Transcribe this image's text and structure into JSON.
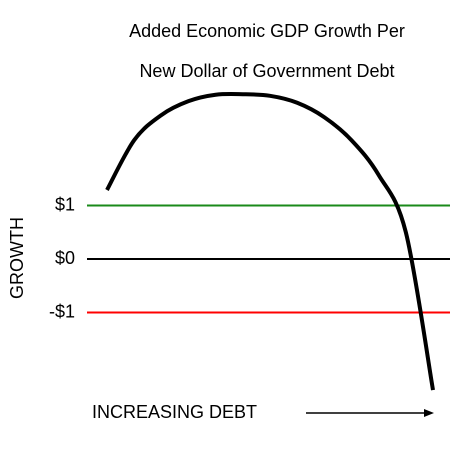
{
  "chart_data": {
    "type": "line",
    "title": "Added Economic GDP Growth Per",
    "subtitle": "New Dollar of Government Debt",
    "y_label": "GROWTH",
    "x_label": "INCREASING DEBT",
    "categories": [
      null,
      null,
      null,
      null,
      null,
      null,
      null,
      null,
      null,
      null,
      null,
      null,
      null
    ],
    "values": [
      1.29,
      2.22,
      2.69,
      2.95,
      3.07,
      3.08,
      3.05,
      2.92,
      2.65,
      2.22,
      1.57,
      0.5,
      -2.45
    ],
    "color": "#000000",
    "ylim": [
      -3,
      3.5
    ],
    "yticks": [
      {
        "value": 1,
        "label": "$1"
      },
      {
        "value": 0,
        "label": "$0"
      },
      {
        "value": -1,
        "label": "-$1"
      }
    ],
    "tick_colors": [
      "#1a8a1a",
      "#000000",
      "#ff0000"
    ],
    "grid": true
  }
}
